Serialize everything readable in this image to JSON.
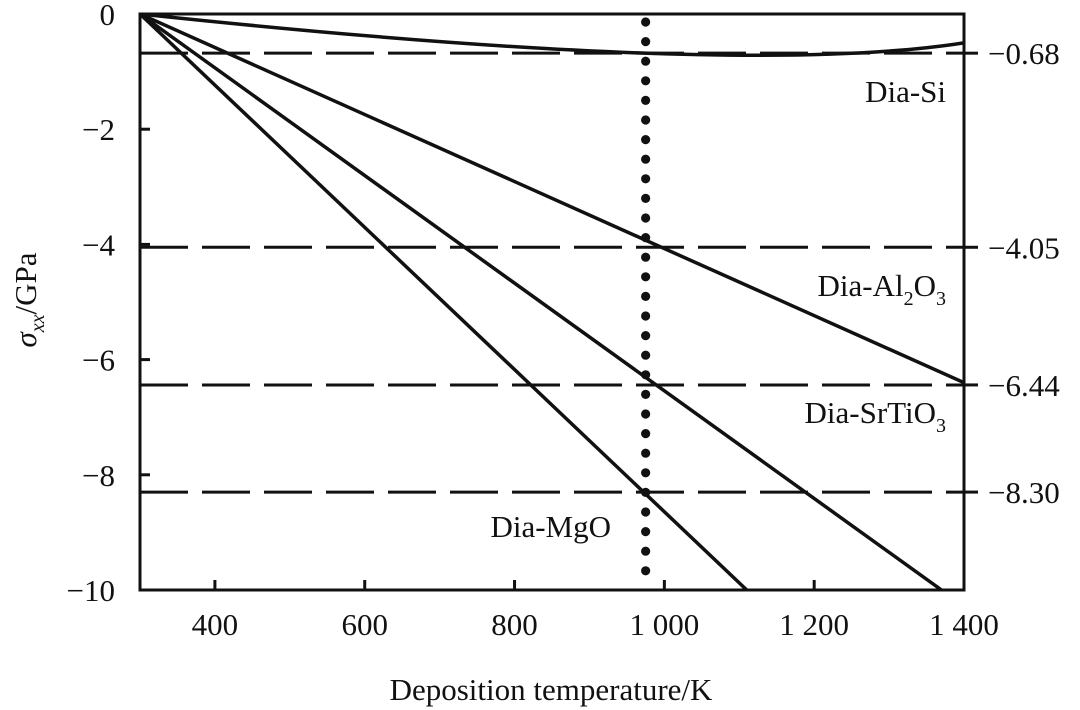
{
  "chart_data": {
    "type": "line",
    "xlabel": "Deposition temperature/K",
    "ylabel": {
      "symbol": "σ",
      "subscript": "xx",
      "unit": "/GPa"
    },
    "xlim": [
      300,
      1400
    ],
    "ylim": [
      -10,
      0
    ],
    "x_ticks": [
      400,
      600,
      800,
      1000,
      1200,
      1400
    ],
    "x_tick_labels": [
      "400",
      "600",
      "800",
      "1 000",
      "1 200",
      "1 400"
    ],
    "y_ticks": [
      0,
      -2,
      -4,
      -6,
      -8,
      -10
    ],
    "y_tick_labels": [
      "0",
      "−2",
      "−4",
      "−6",
      "−8",
      "−10"
    ],
    "right_tick_labels": [
      "−0.68",
      "−4.05",
      "−6.44",
      "−8.30"
    ],
    "reference_lines": [
      -0.68,
      -4.05,
      -6.44,
      -8.3
    ],
    "vertical_marker_x": 975,
    "grid": false,
    "series": [
      {
        "name": "Dia-Si",
        "label_main": "Dia-Si",
        "label_sub": "",
        "label_tail": "",
        "x": [
          300,
          975,
          1400
        ],
        "y": [
          0,
          -0.68,
          -0.5
        ]
      },
      {
        "name": "Dia-Al2O3",
        "label_main": "Dia-Al",
        "label_sub": "2",
        "label_tail": "O",
        "label_sub2": "3",
        "x": [
          300,
          1400
        ],
        "y": [
          0,
          -6.4
        ]
      },
      {
        "name": "Dia-SrTiO3",
        "label_main": "Dia-SrTiO",
        "label_sub": "3",
        "label_tail": "",
        "x": [
          300,
          1370
        ],
        "y": [
          0,
          -10
        ]
      },
      {
        "name": "Dia-MgO",
        "label_main": "Dia-MgO",
        "label_sub": "",
        "label_tail": "",
        "x": [
          300,
          1110
        ],
        "y": [
          0,
          -10
        ]
      }
    ]
  }
}
